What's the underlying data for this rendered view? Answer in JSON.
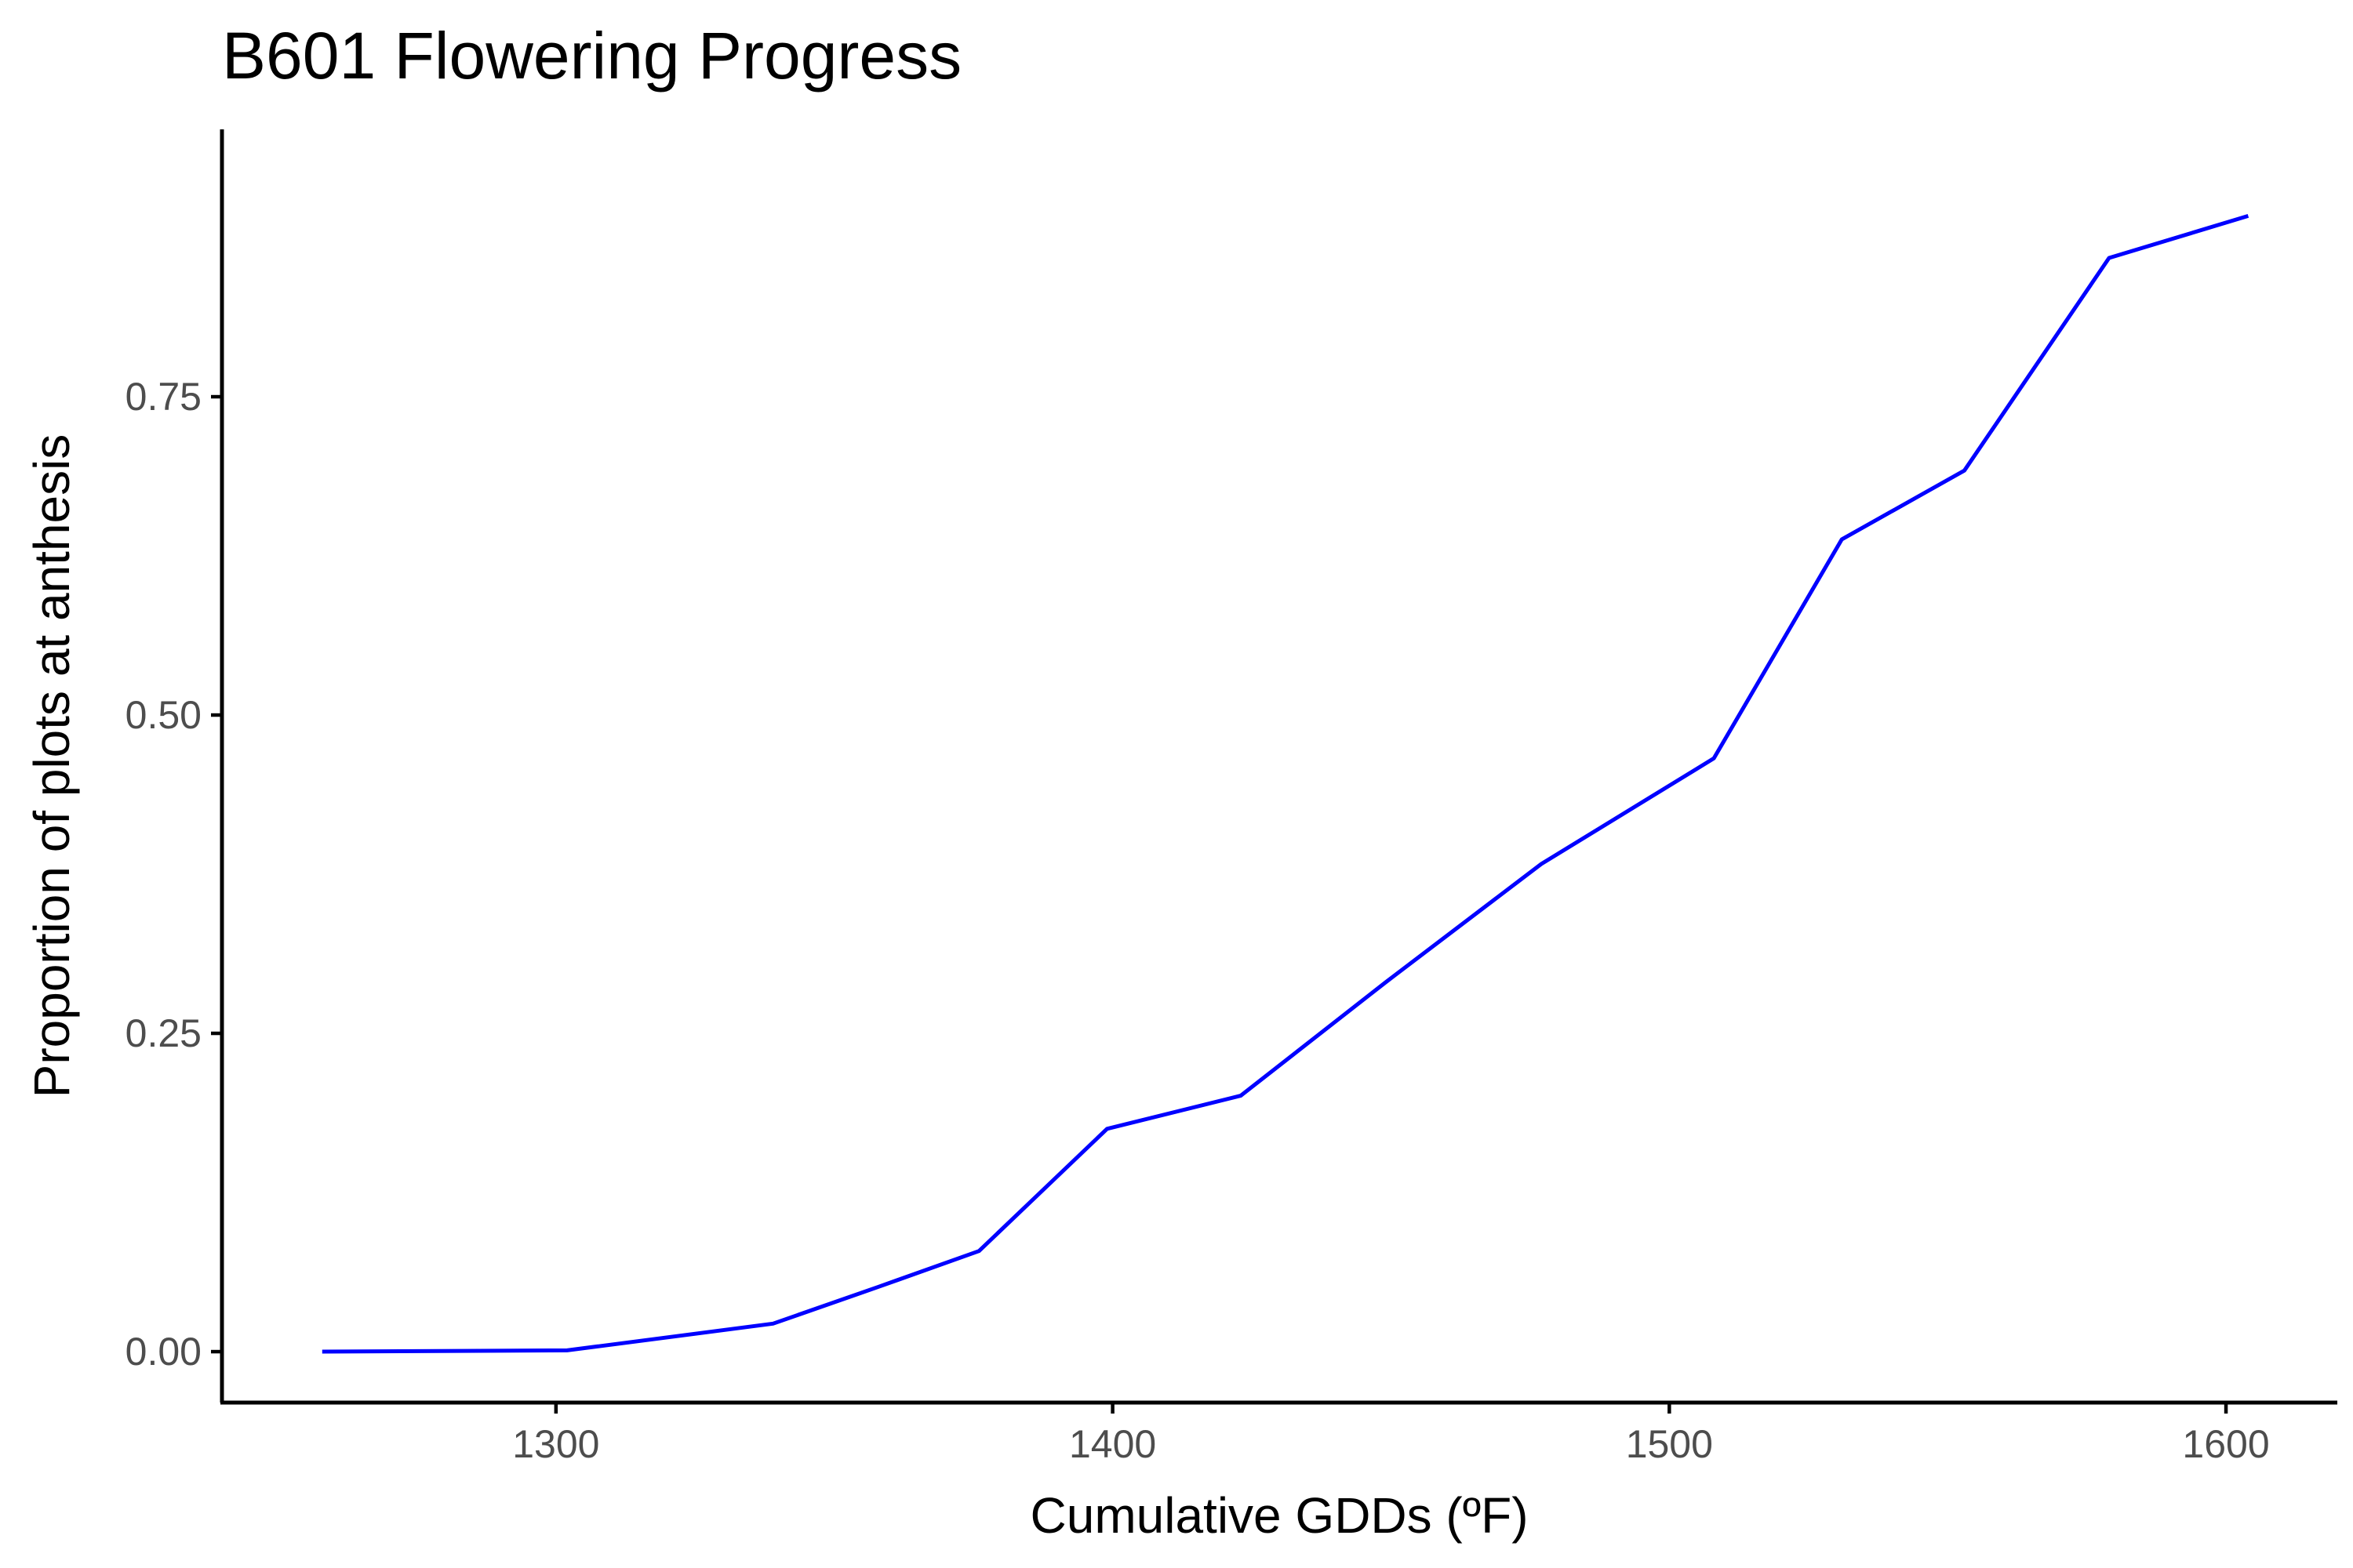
{
  "chart_data": {
    "type": "line",
    "title": "B601 Flowering Progress",
    "xlabel": "Cumulative GDDs (ºF)",
    "ylabel": "Proportion of plots at anthesis",
    "xlim": [
      1240,
      1620
    ],
    "ylim": [
      -0.04,
      0.96
    ],
    "x_ticks": [
      1300,
      1400,
      1500,
      1600
    ],
    "x_tick_labels": [
      "1300",
      "1400",
      "1500",
      "1600"
    ],
    "y_ticks": [
      0,
      0.25,
      0.5,
      0.75
    ],
    "y_tick_labels": [
      "0.00",
      "0.25",
      "0.50",
      "0.75"
    ],
    "grid": false,
    "series": [
      {
        "color": "#0000ff",
        "x": [
          1258,
          1302,
          1339,
          1358,
          1376,
          1399,
          1423,
          1449,
          1477,
          1508,
          1531,
          1553,
          1579,
          1604
        ],
        "y": [
          0.0,
          0.001,
          0.022,
          0.051,
          0.079,
          0.175,
          0.201,
          0.29,
          0.383,
          0.466,
          0.638,
          0.692,
          0.859,
          0.892
        ]
      }
    ]
  }
}
